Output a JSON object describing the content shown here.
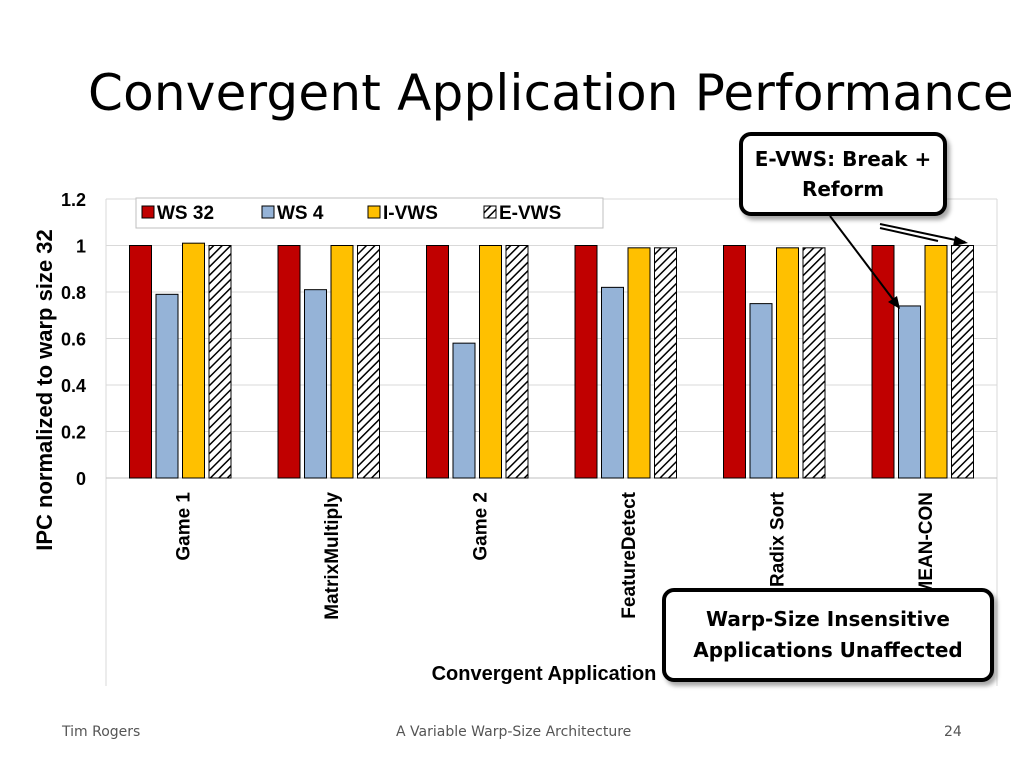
{
  "slide": {
    "title": "Convergent Application Performance",
    "footer_left": "Tim Rogers",
    "footer_center": "A Variable Warp-Size Architecture",
    "footer_right": "24"
  },
  "callouts": {
    "evws": "E-VWS: Break + Reform",
    "insensitive": "Warp-Size Insensitive Applications Unaffected"
  },
  "chart_data": {
    "type": "bar",
    "title": "",
    "xlabel": "Convergent Application",
    "ylabel": "IPC normalized to warp size 32",
    "ylim": [
      0,
      1.2
    ],
    "yticks": [
      "0",
      "0.2",
      "0.4",
      "0.6",
      "0.8",
      "1",
      "1.2"
    ],
    "grid": true,
    "legend_position": "top-left",
    "categories": [
      "Game 1",
      "MatrixMultiply",
      "Game 2",
      "FeatureDetect",
      "Radix Sort",
      "HMEAN-CON"
    ],
    "series": [
      {
        "name": "WS 32",
        "color": "#C00000",
        "pattern": "solid",
        "values": [
          1.0,
          1.0,
          1.0,
          1.0,
          1.0,
          1.0
        ]
      },
      {
        "name": "WS 4",
        "color": "#95B3D7",
        "pattern": "solid",
        "values": [
          0.79,
          0.81,
          0.58,
          0.82,
          0.75,
          0.74
        ]
      },
      {
        "name": "I-VWS",
        "color": "#FFC000",
        "pattern": "solid",
        "values": [
          1.01,
          1.0,
          1.0,
          0.99,
          0.99,
          1.0
        ]
      },
      {
        "name": "E-VWS",
        "color": "#000000",
        "pattern": "diagonal-hatch",
        "values": [
          1.0,
          1.0,
          1.0,
          0.99,
          0.99,
          1.0
        ]
      }
    ]
  }
}
